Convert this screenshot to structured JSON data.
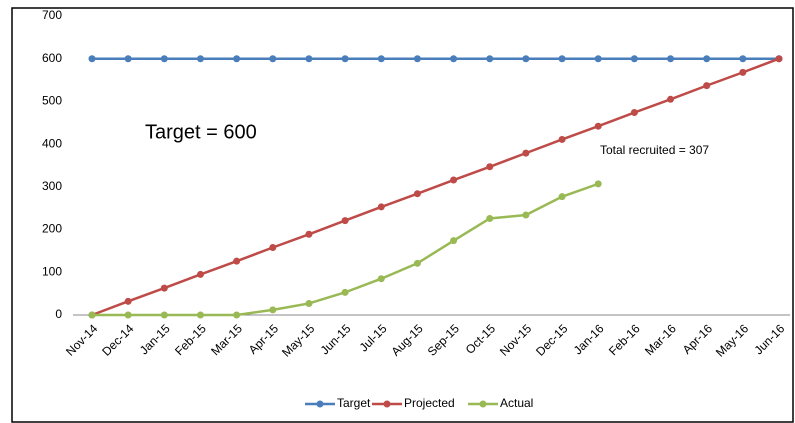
{
  "chart_data": {
    "type": "line",
    "categories": [
      "Nov-14",
      "Dec-14",
      "Jan-15",
      "Feb-15",
      "Mar-15",
      "Apr-15",
      "May-15",
      "Jun-15",
      "Jul-15",
      "Aug-15",
      "Sep-15",
      "Oct-15",
      "Nov-15",
      "Dec-15",
      "Jan-16",
      "Feb-16",
      "Mar-16",
      "Apr-16",
      "May-16",
      "Jun-16"
    ],
    "series": [
      {
        "name": "Target",
        "color": "#4a7ebb",
        "values": [
          600,
          600,
          600,
          600,
          600,
          600,
          600,
          600,
          600,
          600,
          600,
          600,
          600,
          600,
          600,
          600,
          600,
          600,
          600,
          600
        ]
      },
      {
        "name": "Projected",
        "color": "#be4b48",
        "values": [
          0,
          32,
          63,
          95,
          126,
          158,
          189,
          221,
          253,
          284,
          316,
          347,
          379,
          411,
          442,
          474,
          505,
          537,
          568,
          600
        ]
      },
      {
        "name": "Actual",
        "color": "#98b954",
        "values": [
          0,
          0,
          0,
          0,
          0,
          12,
          27,
          53,
          85,
          121,
          174,
          226,
          234,
          277,
          307,
          null,
          null,
          null,
          null,
          null
        ]
      }
    ],
    "ylim": [
      0,
      700
    ],
    "yticks": [
      0,
      100,
      200,
      300,
      400,
      500,
      600,
      700
    ],
    "grid": false,
    "legend": "bottom",
    "annotations": [
      "Target = 600",
      "Total recruited = 307"
    ]
  }
}
